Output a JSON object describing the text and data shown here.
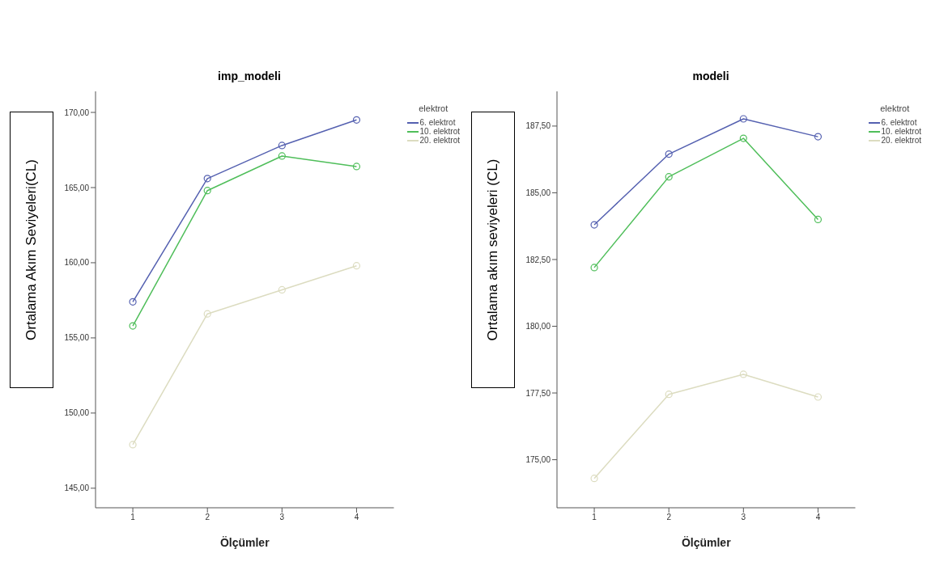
{
  "chart_data": [
    {
      "type": "line",
      "title": "imp_modeli",
      "xlabel": "Ölçümler",
      "ylabel": "Ortalama Akım Seviyeleri(CL)",
      "legend_title": "elektrot",
      "legend": "top right",
      "marker": "circle",
      "grid": false,
      "categories": [
        "1",
        "2",
        "3",
        "4"
      ],
      "ylim": [
        143.7,
        171.4
      ],
      "yticks": [
        {
          "value": 145,
          "label": "145,00"
        },
        {
          "value": 150,
          "label": "150,00"
        },
        {
          "value": 155,
          "label": "155,00"
        },
        {
          "value": 160,
          "label": "160,00"
        },
        {
          "value": 165,
          "label": "165,00"
        },
        {
          "value": 170,
          "label": "170,00"
        }
      ],
      "series": [
        {
          "name": "6. elektrot",
          "color": "#5460b0",
          "values": [
            157.4,
            165.6,
            167.8,
            169.5
          ]
        },
        {
          "name": "10. elektrot",
          "color": "#4fbe5a",
          "values": [
            155.8,
            164.8,
            167.1,
            166.4
          ]
        },
        {
          "name": "20. elektrot",
          "color": "#dcdcc0",
          "values": [
            147.9,
            156.6,
            158.2,
            159.8
          ]
        }
      ]
    },
    {
      "type": "line",
      "title": "modeli",
      "xlabel": "Ölçümler",
      "ylabel": "Ortalama akım seviyeleri (CL)",
      "legend_title": "elektrot",
      "legend": "top right",
      "marker": "circle",
      "grid": false,
      "categories": [
        "1",
        "2",
        "3",
        "4"
      ],
      "ylim": [
        173.2,
        188.8
      ],
      "yticks": [
        {
          "value": 175,
          "label": "175,00"
        },
        {
          "value": 177.5,
          "label": "177,50"
        },
        {
          "value": 180,
          "label": "180,00"
        },
        {
          "value": 182.5,
          "label": "182,50"
        },
        {
          "value": 185,
          "label": "185,00"
        },
        {
          "value": 187.5,
          "label": "187,50"
        }
      ],
      "series": [
        {
          "name": "6. elektrot",
          "color": "#5460b0",
          "values": [
            183.8,
            186.45,
            187.77,
            187.1
          ]
        },
        {
          "name": "10. elektrot",
          "color": "#4fbe5a",
          "values": [
            182.2,
            185.6,
            187.04,
            184.0
          ]
        },
        {
          "name": "20. elektrot",
          "color": "#dcdcc0",
          "values": [
            174.3,
            177.45,
            178.2,
            177.35
          ]
        }
      ]
    }
  ]
}
